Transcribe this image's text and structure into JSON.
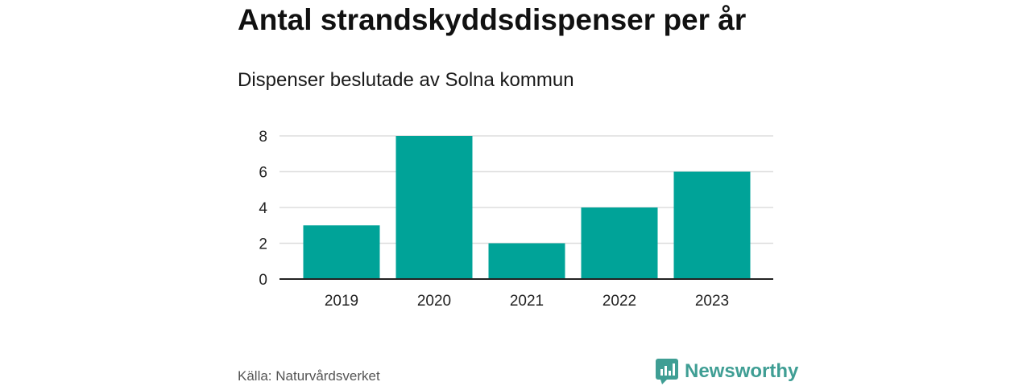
{
  "header": {
    "title": "Antal strandskyddsdispenser per år",
    "subtitle": "Dispenser beslutade av Solna kommun"
  },
  "footer": {
    "source": "Källa: Naturvårdsverket",
    "brand": "Newsworthy",
    "brand_icon": "bar-chart-speech-bubble-icon"
  },
  "colors": {
    "bar": "#00a398",
    "grid": "#dddddd",
    "axis": "#222222",
    "brand": "#3f9e94"
  },
  "chart_data": {
    "type": "bar",
    "title": "Antal strandskyddsdispenser per år",
    "subtitle": "Dispenser beslutade av Solna kommun",
    "xlabel": "",
    "ylabel": "",
    "categories": [
      "2019",
      "2020",
      "2021",
      "2022",
      "2023"
    ],
    "values": [
      3,
      8,
      2,
      4,
      6
    ],
    "ylim": [
      0,
      8
    ],
    "yticks": [
      0,
      2,
      4,
      6,
      8
    ],
    "grid": true,
    "legend": "none"
  }
}
